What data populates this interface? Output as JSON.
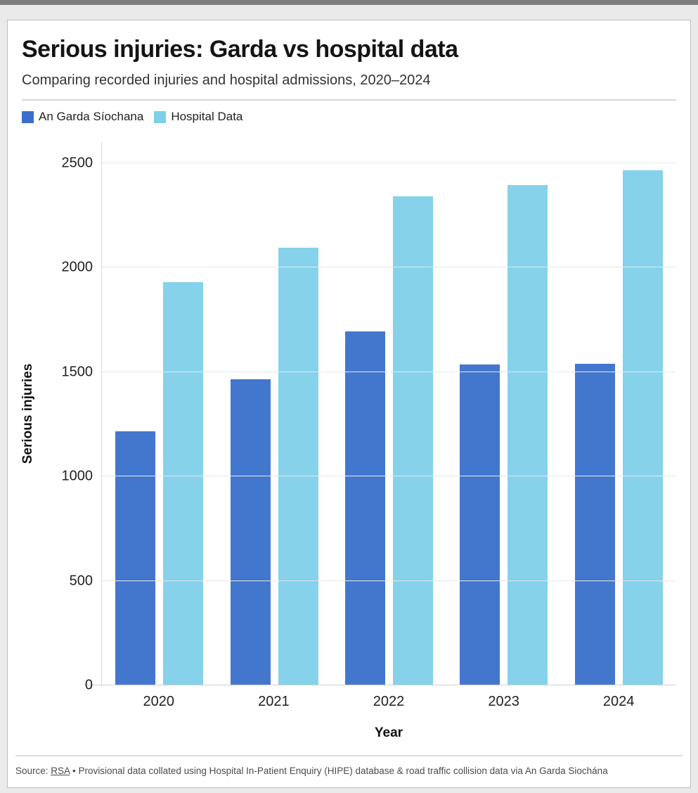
{
  "page": {
    "title": "Serious injuries: Garda vs hospital data",
    "subtitle": "Comparing recorded injuries and hospital admissions, 2020–2024"
  },
  "legend": {
    "items": [
      {
        "label": "An Garda Síochana",
        "color": "#3a6ecd"
      },
      {
        "label": "Hospital Data",
        "color": "#7ed0e9"
      }
    ]
  },
  "footer": {
    "source_prefix": "Source: ",
    "source_link": "RSA",
    "separator": " • ",
    "note": "Provisional data collated using Hospital In-Patient Enquiry (HIPE) database & road traffic collision data via An Garda Siochána"
  },
  "chart_data": {
    "type": "bar",
    "categories": [
      "2020",
      "2021",
      "2022",
      "2023",
      "2024"
    ],
    "series": [
      {
        "name": "An Garda Síochana",
        "color": "#4377cd",
        "values": [
          1215,
          1465,
          1695,
          1535,
          1540
        ]
      },
      {
        "name": "Hospital Data",
        "color": "#85d2ea",
        "values": [
          1930,
          2095,
          2340,
          2395,
          2465
        ]
      }
    ],
    "title": "Serious injuries: Garda vs hospital data",
    "subtitle": "Comparing recorded injuries and hospital admissions, 2020–2024",
    "xlabel": "Year",
    "ylabel": "Serious injuries",
    "yticks": [
      0,
      500,
      1000,
      1500,
      2000,
      2500
    ],
    "ylim": [
      0,
      2600
    ],
    "grid": true,
    "legend_position": "top-left"
  }
}
